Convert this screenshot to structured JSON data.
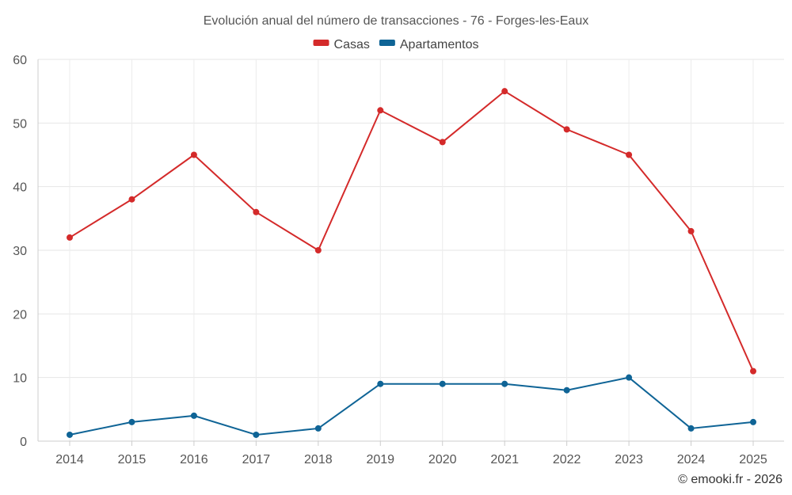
{
  "chart_data": {
    "type": "line",
    "title": "Evolución anual del número de transacciones - 76 - Forges-les-Eaux",
    "xlabel": "",
    "ylabel": "",
    "categories": [
      "2014",
      "2015",
      "2016",
      "2017",
      "2018",
      "2019",
      "2020",
      "2021",
      "2022",
      "2023",
      "2024",
      "2025"
    ],
    "ylim": [
      0,
      60
    ],
    "yticks": [
      0,
      10,
      20,
      30,
      40,
      50,
      60
    ],
    "grid": true,
    "legend_position": "top-center",
    "series": [
      {
        "name": "Casas",
        "color": "#d42a2a",
        "values": [
          32,
          38,
          45,
          36,
          30,
          52,
          47,
          55,
          49,
          45,
          33,
          11
        ]
      },
      {
        "name": "Apartamentos",
        "color": "#0f6496",
        "values": [
          1,
          3,
          4,
          1,
          2,
          9,
          9,
          9,
          8,
          10,
          2,
          3
        ]
      }
    ],
    "credit": "© emooki.fr - 2026"
  }
}
